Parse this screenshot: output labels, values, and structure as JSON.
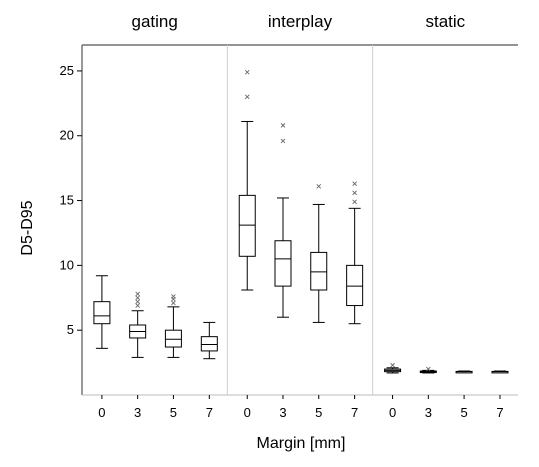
{
  "chart_data": {
    "type": "boxplot",
    "xlabel": "Margin [mm]",
    "ylabel": "D5-D95",
    "ylim": [
      0,
      27
    ],
    "yticks": [
      5,
      10,
      15,
      20,
      25
    ],
    "grid": false,
    "panels": [
      {
        "title": "gating",
        "categories": [
          "0",
          "3",
          "5",
          "7"
        ],
        "boxes": [
          {
            "margin": "0",
            "whisker_low": 3.6,
            "q1": 5.5,
            "median": 6.1,
            "q3": 7.2,
            "whisker_high": 9.2,
            "outliers": []
          },
          {
            "margin": "3",
            "whisker_low": 2.9,
            "q1": 4.4,
            "median": 4.9,
            "q3": 5.4,
            "whisker_high": 6.5,
            "outliers": [
              6.9,
              7.2,
              7.5,
              7.8
            ]
          },
          {
            "margin": "5",
            "whisker_low": 2.9,
            "q1": 3.7,
            "median": 4.3,
            "q3": 5.0,
            "whisker_high": 6.8,
            "outliers": [
              7.1,
              7.4,
              7.6
            ]
          },
          {
            "margin": "7",
            "whisker_low": 2.8,
            "q1": 3.4,
            "median": 3.9,
            "q3": 4.5,
            "whisker_high": 5.6,
            "outliers": []
          }
        ]
      },
      {
        "title": "interplay",
        "categories": [
          "0",
          "3",
          "5",
          "7"
        ],
        "boxes": [
          {
            "margin": "0",
            "whisker_low": 8.1,
            "q1": 10.7,
            "median": 13.1,
            "q3": 15.4,
            "whisker_high": 21.1,
            "outliers": [
              23.0,
              24.9
            ]
          },
          {
            "margin": "3",
            "whisker_low": 6.0,
            "q1": 8.4,
            "median": 10.5,
            "q3": 11.9,
            "whisker_high": 15.2,
            "outliers": [
              19.6,
              20.8
            ]
          },
          {
            "margin": "5",
            "whisker_low": 5.6,
            "q1": 8.1,
            "median": 9.5,
            "q3": 11.0,
            "whisker_high": 14.7,
            "outliers": [
              16.1
            ]
          },
          {
            "margin": "7",
            "whisker_low": 5.5,
            "q1": 6.9,
            "median": 8.4,
            "q3": 10.0,
            "whisker_high": 14.4,
            "outliers": [
              14.9,
              15.6,
              16.3
            ]
          }
        ]
      },
      {
        "title": "static",
        "categories": [
          "0",
          "3",
          "5",
          "7"
        ],
        "boxes": [
          {
            "margin": "0",
            "whisker_low": 1.7,
            "q1": 1.8,
            "median": 1.9,
            "q3": 2.0,
            "whisker_high": 2.1,
            "outliers": [
              2.3
            ]
          },
          {
            "margin": "3",
            "whisker_low": 1.7,
            "q1": 1.75,
            "median": 1.8,
            "q3": 1.85,
            "whisker_high": 1.9,
            "outliers": [
              2.0
            ]
          },
          {
            "margin": "5",
            "whisker_low": 1.75,
            "q1": 1.78,
            "median": 1.8,
            "q3": 1.82,
            "whisker_high": 1.85,
            "outliers": []
          },
          {
            "margin": "7",
            "whisker_low": 1.75,
            "q1": 1.78,
            "median": 1.8,
            "q3": 1.82,
            "whisker_high": 1.85,
            "outliers": []
          }
        ]
      }
    ]
  }
}
